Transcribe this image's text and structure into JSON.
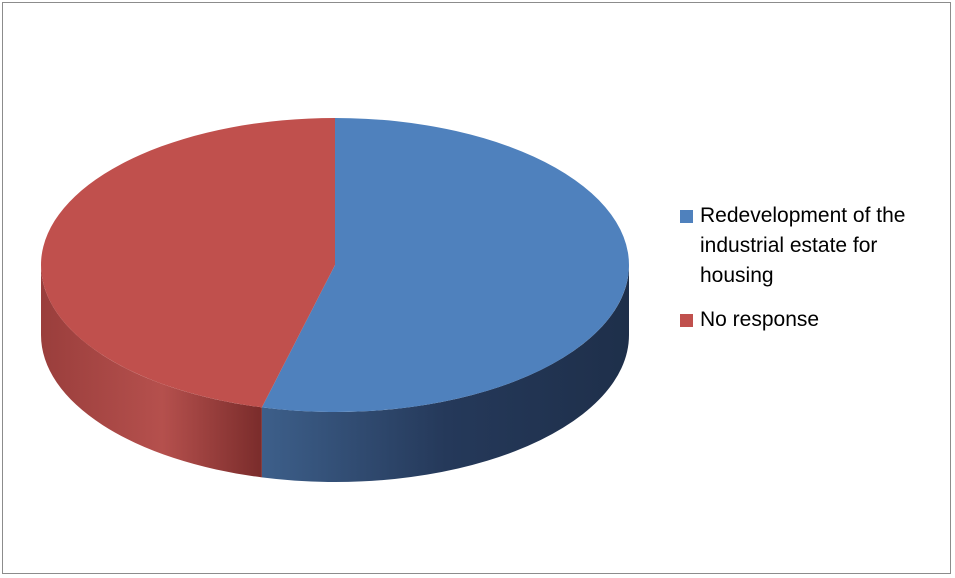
{
  "chart_data": {
    "type": "pie",
    "style": "3d",
    "title": "",
    "slices": [
      {
        "label": "Redevelopment of the industrial estate for housing",
        "value": 54,
        "color": "#4f81bd"
      },
      {
        "label": "No response",
        "value": 46,
        "color": "#c0504d"
      }
    ],
    "legend_position": "right"
  }
}
